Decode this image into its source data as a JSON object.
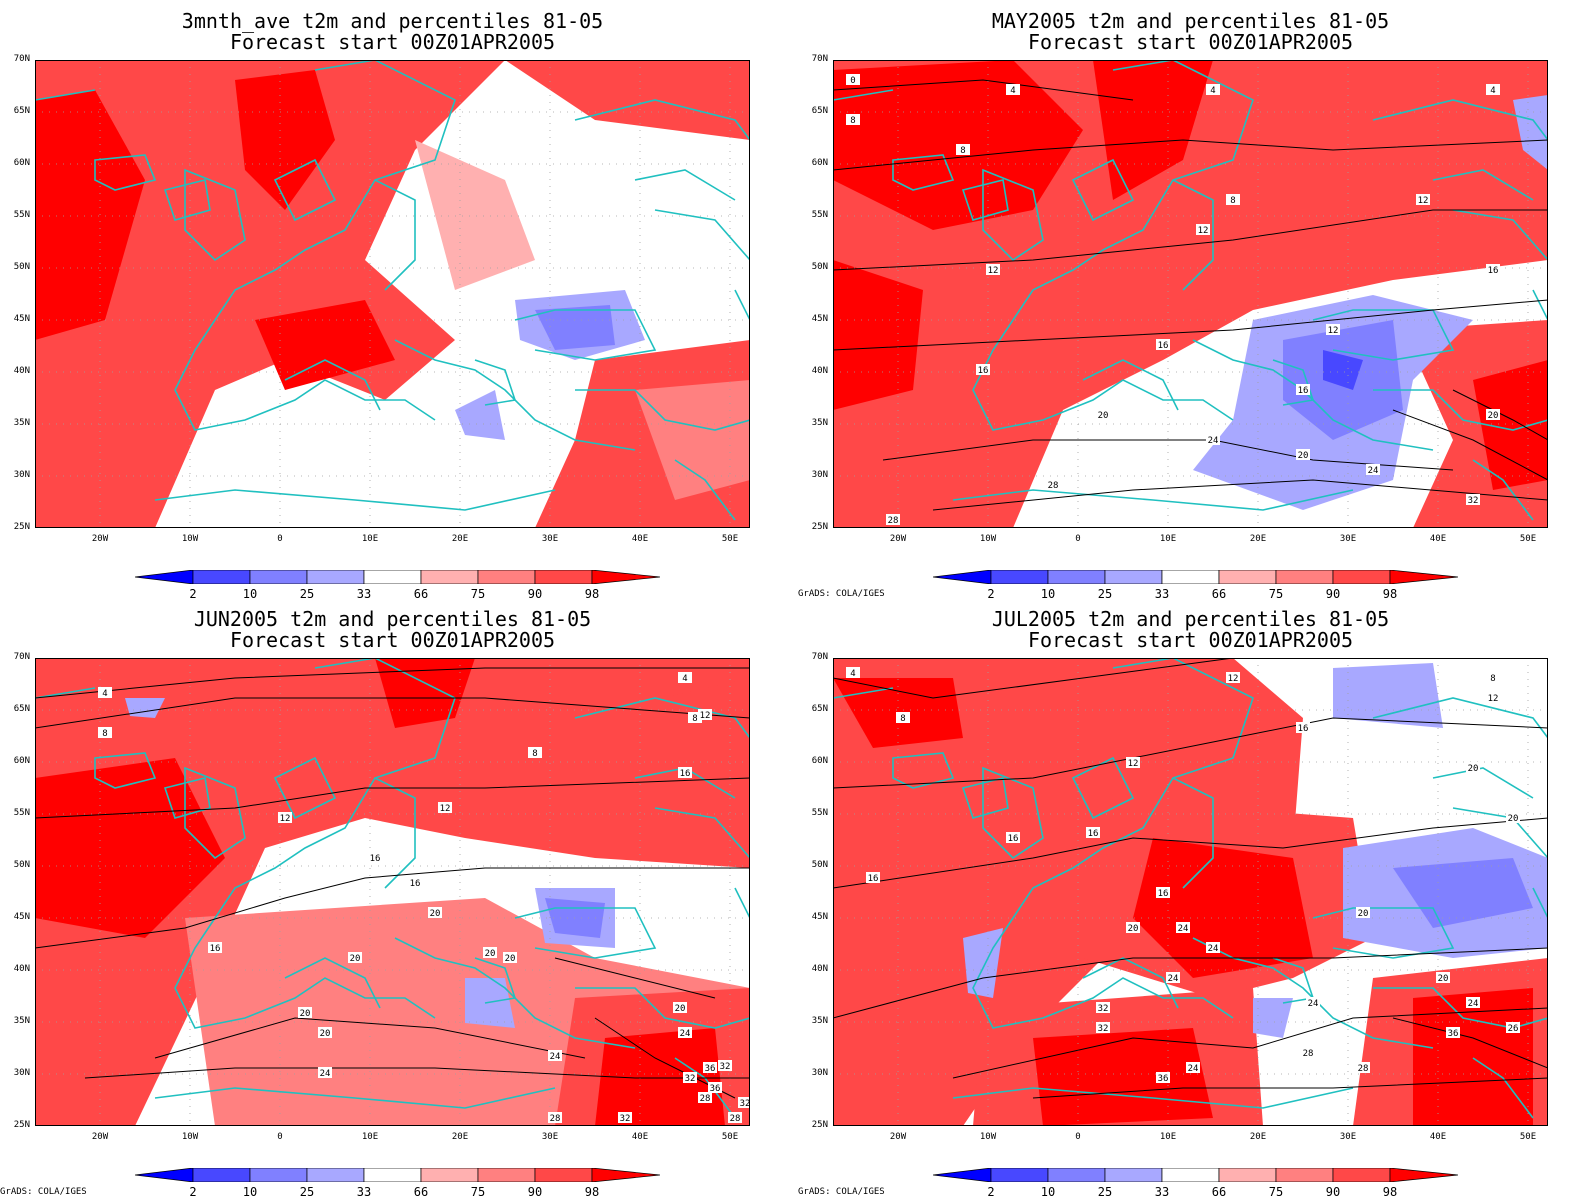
{
  "panels": [
    {
      "id": "tl",
      "title": "3mnth_ave t2m and percentiles 81-05",
      "subtitle": "Forecast start 00Z01APR2005",
      "credit": "",
      "contours": []
    },
    {
      "id": "tr",
      "title": "MAY2005 t2m and percentiles 81-05",
      "subtitle": "Forecast start 00Z01APR2005",
      "credit": "GrADS: COLA/IGES",
      "contours": [
        "0",
        "4",
        "4",
        "4",
        "8",
        "8",
        "8",
        "12",
        "12",
        "12",
        "12",
        "16",
        "16",
        "16",
        "16",
        "20",
        "20",
        "20",
        "24",
        "24",
        "28",
        "28",
        "32"
      ]
    },
    {
      "id": "bl",
      "title": "JUN2005 t2m and percentiles 81-05",
      "subtitle": "Forecast start 00Z01APR2005",
      "credit": "GrADS: COLA/IGES",
      "contours": [
        "4",
        "4",
        "8",
        "8",
        "8",
        "12",
        "12",
        "12",
        "16",
        "16",
        "16",
        "16",
        "20",
        "20",
        "20",
        "20",
        "20",
        "20",
        "20",
        "24",
        "24",
        "24",
        "28",
        "28",
        "28",
        "32",
        "32",
        "32",
        "32",
        "36",
        "36"
      ]
    },
    {
      "id": "br",
      "title": "JUL2005 t2m and percentiles 81-05",
      "subtitle": "Forecast start 00Z01APR2005",
      "credit": "GrADS: COLA/IGES",
      "contours": [
        "4",
        "8",
        "8",
        "12",
        "12",
        "12",
        "16",
        "16",
        "16",
        "16",
        "16",
        "20",
        "20",
        "20",
        "20",
        "20",
        "24",
        "24",
        "24",
        "24",
        "24",
        "24",
        "28",
        "28",
        "32",
        "32",
        "36",
        "36",
        "26"
      ]
    }
  ],
  "axes": {
    "lat_labels": [
      "70N",
      "65N",
      "60N",
      "55N",
      "50N",
      "45N",
      "40N",
      "35N",
      "30N",
      "25N"
    ],
    "lon_labels": [
      "20W",
      "10W",
      "0",
      "10E",
      "20E",
      "30E",
      "40E",
      "50E"
    ]
  },
  "colorbar": {
    "labels": [
      "2",
      "10",
      "25",
      "33",
      "66",
      "75",
      "90",
      "98"
    ],
    "colors": [
      "#0000ff",
      "#4848ff",
      "#8080ff",
      "#a8a8ff",
      "#ffffff",
      "#ffb0b0",
      "#ff8080",
      "#ff4848",
      "#ff0000"
    ]
  },
  "colors": {
    "coast": "#20c0c0",
    "contour": "#000000",
    "grid": "#a0a0a0"
  }
}
